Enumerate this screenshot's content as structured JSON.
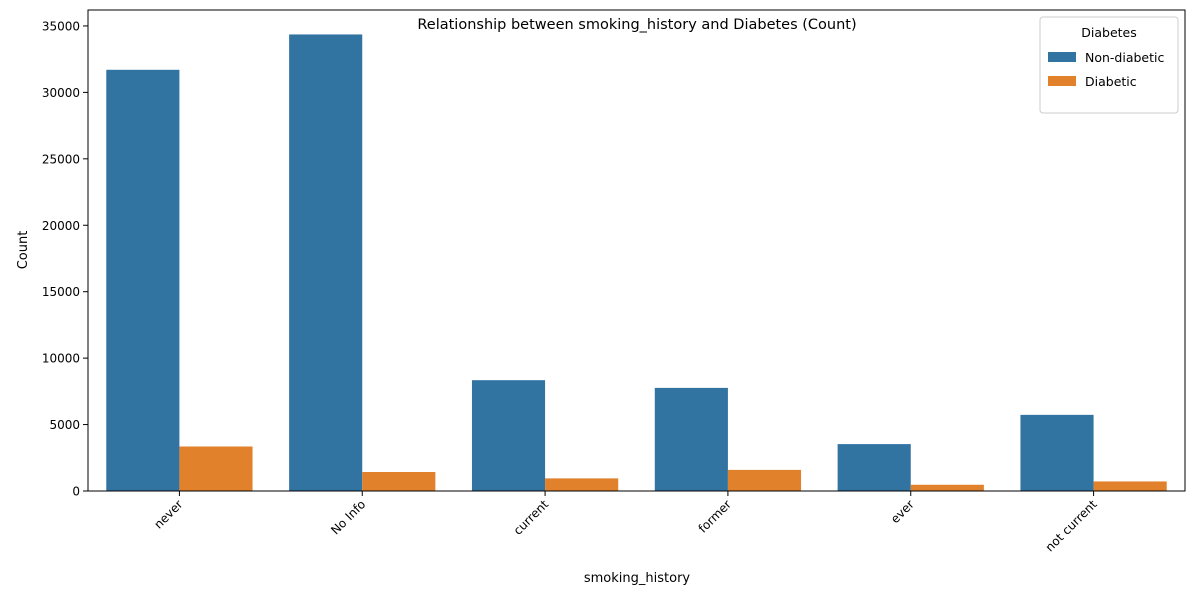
{
  "chart_data": {
    "type": "bar",
    "title": "Relationship between smoking_history and Diabetes (Count)",
    "xlabel": "smoking_history",
    "ylabel": "Count",
    "categories": [
      "never",
      "No Info",
      "current",
      "former",
      "ever",
      "not current"
    ],
    "series": [
      {
        "name": "Non-diabetic",
        "color": "#3274a1",
        "values": [
          31700,
          34360,
          8340,
          7760,
          3530,
          5730
        ]
      },
      {
        "name": "Diabetic",
        "color": "#e1812c",
        "values": [
          3350,
          1430,
          950,
          1590,
          470,
          720
        ]
      }
    ],
    "ylim": [
      0,
      36200
    ],
    "yticks": [
      0,
      5000,
      10000,
      15000,
      20000,
      25000,
      30000,
      35000
    ],
    "xtick_rotation": 45,
    "grid": false,
    "legend": {
      "title": "Diabetes",
      "position": "top-right"
    }
  }
}
